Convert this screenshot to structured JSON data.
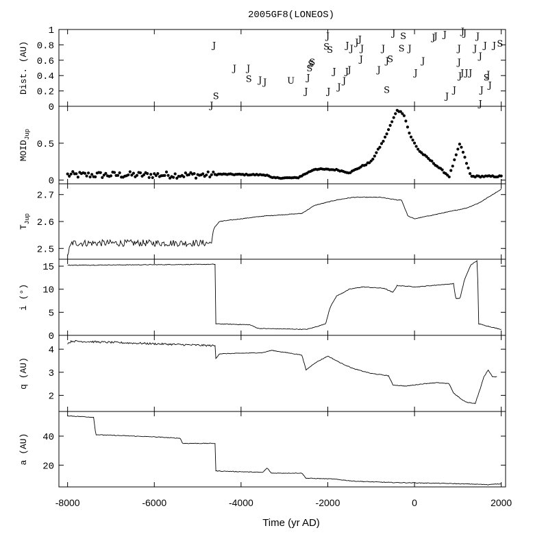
{
  "figure": {
    "title": "2005GF8(LONEOS)",
    "xlabel": "Time (yr AD)",
    "xlim": [
      -8200,
      2100
    ],
    "xticks": [
      -8000,
      -6000,
      -4000,
      -2000,
      0,
      2000
    ],
    "xtick_labels": [
      "-8000",
      "-6000",
      "-4000",
      "-2000",
      "0",
      "2000"
    ]
  },
  "chart_data": [
    {
      "id": "dist",
      "type": "scatter",
      "ylabel": "Dist. (AU)",
      "ylim": [
        0,
        1
      ],
      "yticks": [
        0,
        0.2,
        0.4,
        0.6,
        0.8,
        1
      ],
      "ytick_labels": [
        "0",
        "0.2",
        "0.4",
        "0.6",
        "0.8",
        "1"
      ],
      "markers": [
        {
          "x": -4620,
          "y": 0.8,
          "label": "J"
        },
        {
          "x": -4680,
          "y": 0.02,
          "label": "J"
        },
        {
          "x": -4580,
          "y": 0.14,
          "label": "S"
        },
        {
          "x": -4150,
          "y": 0.5,
          "label": "J"
        },
        {
          "x": -3830,
          "y": 0.5,
          "label": "J"
        },
        {
          "x": -3820,
          "y": 0.36,
          "label": "S"
        },
        {
          "x": -3560,
          "y": 0.35,
          "label": "J"
        },
        {
          "x": -3450,
          "y": 0.32,
          "label": "J"
        },
        {
          "x": -2850,
          "y": 0.34,
          "label": "U"
        },
        {
          "x": -2500,
          "y": 0.2,
          "label": "J"
        },
        {
          "x": -2450,
          "y": 0.38,
          "label": "J"
        },
        {
          "x": -2420,
          "y": 0.5,
          "label": "S"
        },
        {
          "x": -2390,
          "y": 0.56,
          "label": "S"
        },
        {
          "x": -2360,
          "y": 0.58,
          "label": "S"
        },
        {
          "x": -2000,
          "y": 0.92,
          "label": "J"
        },
        {
          "x": -2030,
          "y": 0.78,
          "label": "S"
        },
        {
          "x": -1950,
          "y": 0.74,
          "label": "S"
        },
        {
          "x": -1980,
          "y": 0.2,
          "label": "J"
        },
        {
          "x": -1850,
          "y": 0.46,
          "label": "J"
        },
        {
          "x": -1740,
          "y": 0.26,
          "label": "J"
        },
        {
          "x": -1620,
          "y": 0.34,
          "label": "J"
        },
        {
          "x": -1560,
          "y": 0.46,
          "label": "J"
        },
        {
          "x": -1500,
          "y": 0.48,
          "label": "J"
        },
        {
          "x": -1550,
          "y": 0.8,
          "label": "J"
        },
        {
          "x": -1450,
          "y": 0.76,
          "label": "J"
        },
        {
          "x": -1330,
          "y": 0.84,
          "label": "J"
        },
        {
          "x": -1260,
          "y": 0.88,
          "label": "J"
        },
        {
          "x": -1210,
          "y": 0.76,
          "label": "J"
        },
        {
          "x": -1230,
          "y": 0.62,
          "label": "J"
        },
        {
          "x": -820,
          "y": 0.48,
          "label": "J"
        },
        {
          "x": -720,
          "y": 0.76,
          "label": "J"
        },
        {
          "x": -630,
          "y": 0.6,
          "label": "J"
        },
        {
          "x": -560,
          "y": 0.62,
          "label": "S"
        },
        {
          "x": -640,
          "y": 0.22,
          "label": "S"
        },
        {
          "x": -480,
          "y": 0.96,
          "label": "J"
        },
        {
          "x": -260,
          "y": 0.92,
          "label": "S"
        },
        {
          "x": -300,
          "y": 0.76,
          "label": "S"
        },
        {
          "x": -110,
          "y": 0.76,
          "label": "J"
        },
        {
          "x": 200,
          "y": 0.6,
          "label": "J"
        },
        {
          "x": 30,
          "y": 0.44,
          "label": "J"
        },
        {
          "x": 440,
          "y": 0.9,
          "label": "J"
        },
        {
          "x": 490,
          "y": 0.92,
          "label": "J"
        },
        {
          "x": 700,
          "y": 0.94,
          "label": "J"
        },
        {
          "x": 1110,
          "y": 0.98,
          "label": "J"
        },
        {
          "x": 1160,
          "y": 0.96,
          "label": "J"
        },
        {
          "x": 1030,
          "y": 0.76,
          "label": "J"
        },
        {
          "x": 1030,
          "y": 0.58,
          "label": "J"
        },
        {
          "x": 1050,
          "y": 0.4,
          "label": "J"
        },
        {
          "x": 1100,
          "y": 0.44,
          "label": "J"
        },
        {
          "x": 1200,
          "y": 0.44,
          "label": "J"
        },
        {
          "x": 1290,
          "y": 0.44,
          "label": "J"
        },
        {
          "x": 920,
          "y": 0.22,
          "label": "J"
        },
        {
          "x": 750,
          "y": 0.14,
          "label": "J"
        },
        {
          "x": 1460,
          "y": 0.92,
          "label": "J"
        },
        {
          "x": 1400,
          "y": 0.76,
          "label": "J"
        },
        {
          "x": 1520,
          "y": 0.66,
          "label": "J"
        },
        {
          "x": 1630,
          "y": 0.8,
          "label": "J"
        },
        {
          "x": 1840,
          "y": 0.8,
          "label": "J"
        },
        {
          "x": 1970,
          "y": 0.82,
          "label": "S"
        },
        {
          "x": 1550,
          "y": 0.22,
          "label": "J"
        },
        {
          "x": 1740,
          "y": 0.28,
          "label": "J"
        },
        {
          "x": 1700,
          "y": 0.42,
          "label": "J"
        },
        {
          "x": 1660,
          "y": 0.38,
          "label": "S"
        },
        {
          "x": 1520,
          "y": 0.04,
          "label": "J"
        }
      ]
    },
    {
      "id": "moid",
      "type": "scatter",
      "ylabel": "MOID",
      "ylabel_sub": "Jup",
      "ylim": [
        -0.05,
        1
      ],
      "yticks": [
        0,
        0.5
      ],
      "ytick_labels": [
        "0",
        "0.5"
      ],
      "profile": [
        [
          -8000,
          0.07
        ],
        [
          -4700,
          0.07
        ],
        [
          -4500,
          0.08
        ],
        [
          -3400,
          0.07
        ],
        [
          -3300,
          0.03
        ],
        [
          -2700,
          0.03
        ],
        [
          -2500,
          0.09
        ],
        [
          -2300,
          0.15
        ],
        [
          -1800,
          0.14
        ],
        [
          -1500,
          0.1
        ],
        [
          -1000,
          0.25
        ],
        [
          -700,
          0.55
        ],
        [
          -400,
          0.95
        ],
        [
          -250,
          0.9
        ],
        [
          -100,
          0.6
        ],
        [
          100,
          0.4
        ],
        [
          500,
          0.2
        ],
        [
          800,
          0.05
        ],
        [
          1050,
          0.5
        ],
        [
          1300,
          0.05
        ],
        [
          2000,
          0.05
        ]
      ]
    },
    {
      "id": "tjup",
      "type": "line",
      "ylabel": "T",
      "ylabel_sub": "Jup",
      "ylim": [
        2.46,
        2.74
      ],
      "yticks": [
        2.5,
        2.6,
        2.7
      ],
      "ytick_labels": [
        "2.5",
        "2.6",
        "2.7"
      ],
      "profile": [
        [
          -8000,
          2.48
        ],
        [
          -7900,
          2.52
        ],
        [
          -4700,
          2.52
        ],
        [
          -4600,
          2.58
        ],
        [
          -4500,
          2.6
        ],
        [
          -3500,
          2.62
        ],
        [
          -2600,
          2.63
        ],
        [
          -2300,
          2.66
        ],
        [
          -1800,
          2.68
        ],
        [
          -1400,
          2.69
        ],
        [
          -800,
          2.69
        ],
        [
          -400,
          2.68
        ],
        [
          -300,
          2.68
        ],
        [
          -150,
          2.62
        ],
        [
          0,
          2.61
        ],
        [
          600,
          2.63
        ],
        [
          1200,
          2.65
        ],
        [
          1500,
          2.67
        ],
        [
          2000,
          2.72
        ]
      ]
    },
    {
      "id": "incl",
      "type": "line",
      "ylabel": "i (°)",
      "ylim": [
        0,
        16.5
      ],
      "yticks": [
        0,
        5,
        10,
        15
      ],
      "ytick_labels": [
        "0",
        "5",
        "10",
        "15"
      ],
      "profile": [
        [
          -8000,
          15.2
        ],
        [
          -7950,
          15.2
        ],
        [
          -4600,
          15.4
        ],
        [
          -4580,
          2.5
        ],
        [
          -3800,
          2.3
        ],
        [
          -3600,
          1.5
        ],
        [
          -2500,
          1.3
        ],
        [
          -2400,
          1.5
        ],
        [
          -2050,
          2.5
        ],
        [
          -1950,
          6
        ],
        [
          -1800,
          8.5
        ],
        [
          -1500,
          10
        ],
        [
          -1200,
          10.5
        ],
        [
          -700,
          10.2
        ],
        [
          -500,
          9.3
        ],
        [
          -400,
          10.8
        ],
        [
          -100,
          10.6
        ],
        [
          50,
          10.5
        ],
        [
          400,
          10.8
        ],
        [
          900,
          11.2
        ],
        [
          950,
          8
        ],
        [
          1050,
          8
        ],
        [
          1150,
          12
        ],
        [
          1300,
          15.3
        ],
        [
          1450,
          16.2
        ],
        [
          1480,
          2.5
        ],
        [
          1900,
          1.5
        ],
        [
          2000,
          1.3
        ]
      ]
    },
    {
      "id": "q",
      "type": "line",
      "ylabel": "q (AU)",
      "ylim": [
        1.3,
        4.6
      ],
      "yticks": [
        2,
        3,
        4
      ],
      "ytick_labels": [
        "2",
        "3",
        "4"
      ],
      "profile": [
        [
          -8000,
          4.25
        ],
        [
          -7900,
          4.35
        ],
        [
          -4600,
          4.15
        ],
        [
          -4580,
          3.6
        ],
        [
          -4500,
          3.8
        ],
        [
          -3500,
          3.85
        ],
        [
          -3300,
          3.95
        ],
        [
          -2600,
          3.75
        ],
        [
          -2500,
          3.1
        ],
        [
          -2300,
          3.4
        ],
        [
          -2000,
          3.7
        ],
        [
          -1700,
          3.4
        ],
        [
          -1400,
          3.15
        ],
        [
          -1000,
          2.95
        ],
        [
          -600,
          2.85
        ],
        [
          -500,
          2.45
        ],
        [
          -200,
          2.4
        ],
        [
          200,
          2.5
        ],
        [
          500,
          2.55
        ],
        [
          800,
          2.5
        ],
        [
          900,
          2.1
        ],
        [
          1100,
          1.8
        ],
        [
          1200,
          1.7
        ],
        [
          1400,
          1.65
        ],
        [
          1500,
          2.2
        ],
        [
          1600,
          2.8
        ],
        [
          1700,
          3.1
        ],
        [
          1800,
          2.8
        ],
        [
          1900,
          2.8
        ]
      ]
    },
    {
      "id": "a",
      "type": "line",
      "ylabel": "a (AU)",
      "ylim": [
        5,
        57
      ],
      "yticks": [
        20,
        40
      ],
      "ytick_labels": [
        "20",
        "40"
      ],
      "profile": [
        [
          -8000,
          54
        ],
        [
          -7400,
          53
        ],
        [
          -7350,
          41
        ],
        [
          -6000,
          39.5
        ],
        [
          -5400,
          38.5
        ],
        [
          -5350,
          35
        ],
        [
          -4600,
          35
        ],
        [
          -4580,
          16
        ],
        [
          -3500,
          15
        ],
        [
          -3400,
          18
        ],
        [
          -3300,
          14.5
        ],
        [
          -2600,
          14.5
        ],
        [
          -2500,
          11
        ],
        [
          -1900,
          10.5
        ],
        [
          -1400,
          9
        ],
        [
          -1000,
          8.5
        ],
        [
          -500,
          8
        ],
        [
          0,
          7.8
        ],
        [
          600,
          7.5
        ],
        [
          1000,
          7.2
        ],
        [
          1500,
          6.8
        ],
        [
          1700,
          6.5
        ],
        [
          1800,
          7
        ],
        [
          2000,
          7
        ]
      ]
    }
  ]
}
